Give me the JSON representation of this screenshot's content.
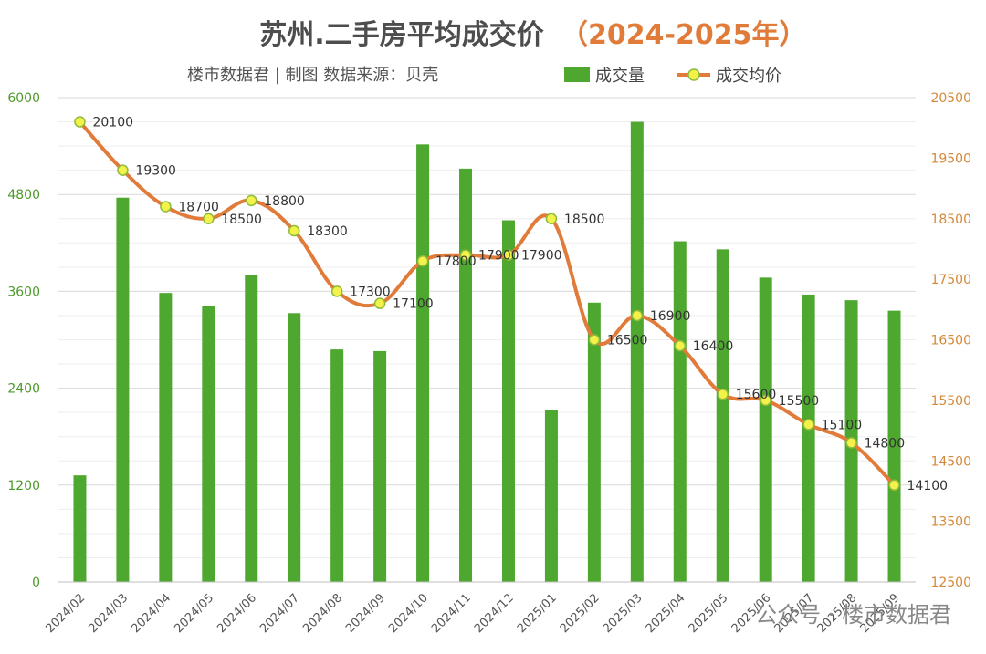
{
  "chart_data": {
    "type": "bar+line",
    "title": "苏州.二手房平均成交价",
    "title_year": "（2024-2025年）",
    "subtitle": "楼市数据君 | 制图  数据来源：贝壳",
    "categories": [
      "2024/02",
      "2024/03",
      "2024/04",
      "2024/05",
      "2024/06",
      "2024/07",
      "2024/08",
      "2024/09",
      "2024/10",
      "2024/11",
      "2024/12",
      "2025/01",
      "2025/02",
      "2025/03",
      "2025/04",
      "2025/05",
      "2025/06",
      "2025/07",
      "2025/08",
      "2025/09"
    ],
    "series": [
      {
        "name": "成交量",
        "type": "bar",
        "axis": "left",
        "color": "#4ea72e",
        "values": [
          1320,
          4760,
          3580,
          3420,
          3800,
          3330,
          2880,
          2860,
          5420,
          5120,
          4480,
          2130,
          3460,
          5700,
          4220,
          4120,
          3770,
          3560,
          3490,
          3360
        ]
      },
      {
        "name": "成交均价",
        "type": "line",
        "axis": "right",
        "color": "#e07b39",
        "marker_color": "#f2f24b",
        "values": [
          20100,
          19300,
          18700,
          18500,
          18800,
          18300,
          17300,
          17100,
          17800,
          17900,
          17900,
          18500,
          16500,
          16900,
          16400,
          15600,
          15500,
          15100,
          14800,
          14100
        ],
        "labels": [
          "20100",
          "19300",
          "18700",
          "18500",
          "18800",
          "18300",
          "17300",
          "17100",
          "17800",
          "17900",
          "17900",
          "18500",
          "16500",
          "16900",
          "16400",
          "15600",
          "15500",
          "15100",
          "14800",
          "14100"
        ]
      }
    ],
    "y_left": {
      "min": 0,
      "max": 6000,
      "ticks": [
        "0",
        "1200",
        "2400",
        "3600",
        "4800",
        "6000"
      ],
      "color": "#4e9a2a"
    },
    "y_right": {
      "min": 12500,
      "max": 20500,
      "ticks": [
        "12500",
        "13500",
        "14500",
        "15500",
        "16500",
        "17500",
        "18500",
        "19500",
        "20500"
      ],
      "color": "#d4893a"
    },
    "grid": true,
    "legend_position": "top-right",
    "watermark": "公众号 · 楼市数据君"
  }
}
